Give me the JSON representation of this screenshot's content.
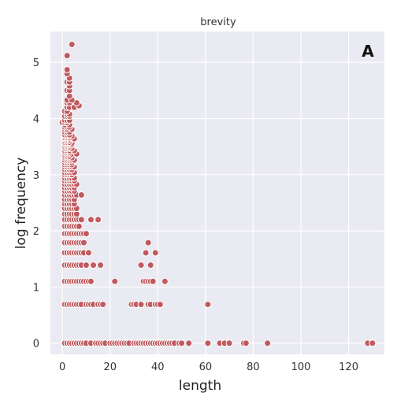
{
  "chart_data": {
    "type": "scatter",
    "title": "brevity",
    "panel_label": "A",
    "xlabel": "length",
    "ylabel": "log frequency",
    "xlim": [
      -5,
      135
    ],
    "ylim": [
      -0.2,
      5.55
    ],
    "xticks": [
      "0",
      "20",
      "40",
      "60",
      "80",
      "100",
      "120"
    ],
    "xtick_values": [
      0,
      20,
      40,
      60,
      80,
      100,
      120
    ],
    "yticks": [
      "0",
      "1",
      "2",
      "3",
      "4",
      "5"
    ],
    "ytick_values": [
      0,
      1,
      2,
      3,
      4,
      5
    ],
    "grid": true,
    "background": "#eaeaf2",
    "point_color": "#c05a5e",
    "rows": [
      {
        "y": 0,
        "x": [
          1,
          2,
          3,
          4,
          5,
          6,
          7,
          8,
          9,
          10,
          12,
          14,
          15,
          16,
          17,
          18,
          20,
          21,
          22,
          23,
          24,
          25,
          26,
          27,
          28,
          30,
          31,
          32,
          33,
          34,
          35,
          36,
          37,
          38,
          39,
          40,
          41,
          42,
          43,
          44,
          45,
          46,
          47,
          49,
          50,
          53,
          61,
          66,
          68,
          70,
          76,
          77,
          86,
          128,
          130
        ]
      },
      {
        "y": 0.69,
        "x": [
          1,
          2,
          3,
          4,
          5,
          6,
          7,
          8,
          10,
          11,
          12,
          13,
          15,
          16,
          17,
          29,
          30,
          31,
          33,
          36,
          37,
          39,
          40,
          41,
          61
        ]
      },
      {
        "y": 1.1,
        "x": [
          1,
          2,
          3,
          4,
          5,
          6,
          7,
          8,
          9,
          10,
          11,
          12,
          22,
          34,
          35,
          36,
          37,
          38,
          43
        ]
      },
      {
        "y": 1.39,
        "x": [
          1,
          2,
          3,
          4,
          5,
          6,
          7,
          8,
          10,
          13,
          16,
          33,
          37
        ]
      },
      {
        "y": 1.61,
        "x": [
          1,
          2,
          3,
          4,
          5,
          6,
          7,
          8,
          9,
          11,
          35,
          39
        ]
      },
      {
        "y": 1.79,
        "x": [
          1,
          2,
          3,
          4,
          5,
          6,
          7,
          8,
          9,
          36
        ]
      },
      {
        "y": 1.95,
        "x": [
          1,
          2,
          3,
          4,
          5,
          6,
          7,
          8,
          9,
          10
        ]
      },
      {
        "y": 2.08,
        "x": [
          1,
          2,
          3,
          4,
          5,
          6,
          7
        ]
      },
      {
        "y": 2.2,
        "x": [
          1,
          2,
          3,
          4,
          5,
          6,
          7,
          8,
          12,
          15
        ]
      },
      {
        "y": 2.3,
        "x": [
          1,
          2,
          3,
          4,
          5,
          6
        ]
      },
      {
        "y": 2.4,
        "x": [
          1,
          2,
          3,
          4,
          5,
          6
        ]
      },
      {
        "y": 2.48,
        "x": [
          1,
          2,
          3,
          4,
          5
        ]
      },
      {
        "y": 2.56,
        "x": [
          1,
          2,
          3,
          4,
          5
        ]
      },
      {
        "y": 2.64,
        "x": [
          1,
          2,
          3,
          4,
          5,
          6,
          8
        ]
      },
      {
        "y": 2.71,
        "x": [
          1,
          2,
          3,
          4,
          5
        ]
      },
      {
        "y": 2.77,
        "x": [
          1,
          2,
          3,
          4,
          5
        ]
      },
      {
        "y": 2.83,
        "x": [
          1,
          2,
          3,
          4,
          5,
          6
        ]
      },
      {
        "y": 2.89,
        "x": [
          1,
          2,
          3,
          4,
          5
        ]
      },
      {
        "y": 2.94,
        "x": [
          1,
          2,
          3,
          4,
          5
        ]
      },
      {
        "y": 3.0,
        "x": [
          1,
          2,
          3,
          4
        ]
      },
      {
        "y": 3.04,
        "x": [
          1,
          2,
          3,
          4,
          5
        ]
      },
      {
        "y": 3.09,
        "x": [
          1,
          2,
          3,
          4
        ]
      },
      {
        "y": 3.14,
        "x": [
          1,
          2,
          3,
          4,
          5
        ]
      },
      {
        "y": 3.18,
        "x": [
          1,
          2,
          3,
          4
        ]
      },
      {
        "y": 3.22,
        "x": [
          1,
          2,
          3,
          4
        ]
      },
      {
        "y": 3.26,
        "x": [
          1,
          2,
          3,
          4,
          5
        ]
      },
      {
        "y": 3.3,
        "x": [
          1,
          2,
          3,
          4
        ]
      },
      {
        "y": 3.33,
        "x": [
          1,
          2,
          3
        ]
      },
      {
        "y": 3.37,
        "x": [
          1,
          2,
          3,
          4,
          6
        ]
      },
      {
        "y": 3.4,
        "x": [
          1,
          2,
          3
        ]
      },
      {
        "y": 3.43,
        "x": [
          1,
          2,
          3,
          5
        ]
      },
      {
        "y": 3.47,
        "x": [
          1,
          2,
          3,
          4
        ]
      },
      {
        "y": 3.5,
        "x": [
          1,
          2,
          3
        ]
      },
      {
        "y": 3.53,
        "x": [
          1,
          2,
          3,
          4
        ]
      },
      {
        "y": 3.56,
        "x": [
          1,
          2,
          3,
          4
        ]
      },
      {
        "y": 3.58,
        "x": [
          1,
          2,
          3
        ]
      },
      {
        "y": 3.61,
        "x": [
          1,
          2,
          3
        ]
      },
      {
        "y": 3.64,
        "x": [
          1,
          2,
          3,
          5
        ]
      },
      {
        "y": 3.66,
        "x": [
          1,
          2,
          3
        ]
      },
      {
        "y": 3.69,
        "x": [
          1,
          2,
          3,
          4
        ]
      },
      {
        "y": 3.71,
        "x": [
          1,
          2,
          3
        ]
      },
      {
        "y": 3.76,
        "x": [
          1,
          2,
          3
        ]
      },
      {
        "y": 3.81,
        "x": [
          1,
          2,
          4
        ]
      },
      {
        "y": 3.85,
        "x": [
          1,
          2,
          3
        ]
      },
      {
        "y": 3.89,
        "x": [
          1,
          3
        ]
      },
      {
        "y": 3.93,
        "x": [
          0,
          1,
          2
        ]
      },
      {
        "y": 3.97,
        "x": [
          1,
          2,
          3
        ]
      },
      {
        "y": 4.04,
        "x": [
          1,
          2,
          3
        ]
      },
      {
        "y": 4.08,
        "x": [
          2,
          3
        ]
      },
      {
        "y": 4.13,
        "x": [
          1,
          2
        ]
      },
      {
        "y": 4.2,
        "x": [
          2,
          3,
          5
        ]
      },
      {
        "y": 4.23,
        "x": [
          7
        ]
      },
      {
        "y": 4.28,
        "x": [
          2,
          3,
          6
        ]
      },
      {
        "y": 4.33,
        "x": [
          2,
          4
        ]
      },
      {
        "y": 4.4,
        "x": [
          3
        ]
      },
      {
        "y": 4.5,
        "x": [
          2,
          3
        ]
      },
      {
        "y": 4.58,
        "x": [
          3
        ]
      },
      {
        "y": 4.65,
        "x": [
          2,
          3
        ]
      },
      {
        "y": 4.72,
        "x": [
          3
        ]
      },
      {
        "y": 4.8,
        "x": [
          2
        ]
      },
      {
        "y": 4.87,
        "x": [
          2
        ]
      },
      {
        "y": 5.12,
        "x": [
          2
        ]
      },
      {
        "y": 5.32,
        "x": [
          4
        ]
      }
    ]
  }
}
